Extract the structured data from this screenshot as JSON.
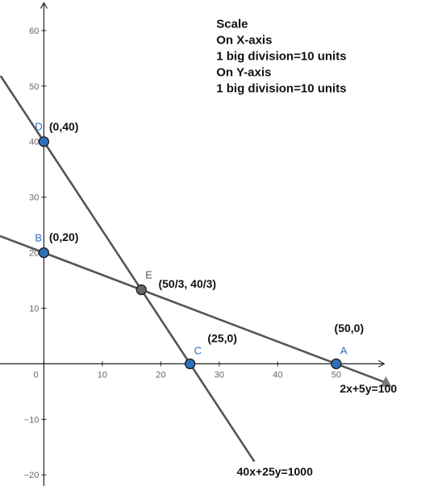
{
  "chart_data": {
    "type": "line",
    "title": "",
    "xlabel": "",
    "ylabel": "",
    "xlim": [
      -7.5,
      64.5
    ],
    "ylim": [
      -22,
      65.5
    ],
    "x_ticks": [
      0,
      10,
      20,
      30,
      40,
      50
    ],
    "y_ticks": [
      -20,
      -10,
      10,
      20,
      30,
      40,
      50,
      60
    ],
    "grid": false,
    "colors": {
      "line": "#555555",
      "point_fill": "#2f6fb8",
      "intersection_fill": "#666666",
      "point_letter": "#2f6fb8"
    },
    "scale_note": [
      "Scale",
      "On X-axis",
      "1 big division=10 units",
      "On Y-axis",
      "1 big division=10 units"
    ],
    "series": [
      {
        "equation": "2x+5y=100",
        "a": 2,
        "b": 5,
        "c": 100,
        "x_range": [
          -7.5,
          59
        ]
      },
      {
        "equation": "40x+25y=1000",
        "a": 40,
        "b": 25,
        "c": 1000,
        "x_range": [
          -7.4,
          36
        ]
      }
    ],
    "points": [
      {
        "letter": "D",
        "x": 0,
        "y": 40,
        "label": "(0,40)"
      },
      {
        "letter": "B",
        "x": 0,
        "y": 20,
        "label": "(0,20)"
      },
      {
        "letter": "E",
        "x": 16.667,
        "y": 13.333,
        "label": "(50/3, 40/3)",
        "intersection": true
      },
      {
        "letter": "C",
        "x": 25,
        "y": 0,
        "label": "(25,0)"
      },
      {
        "letter": "A",
        "x": 50,
        "y": 0,
        "label": "(50,0)"
      }
    ]
  }
}
